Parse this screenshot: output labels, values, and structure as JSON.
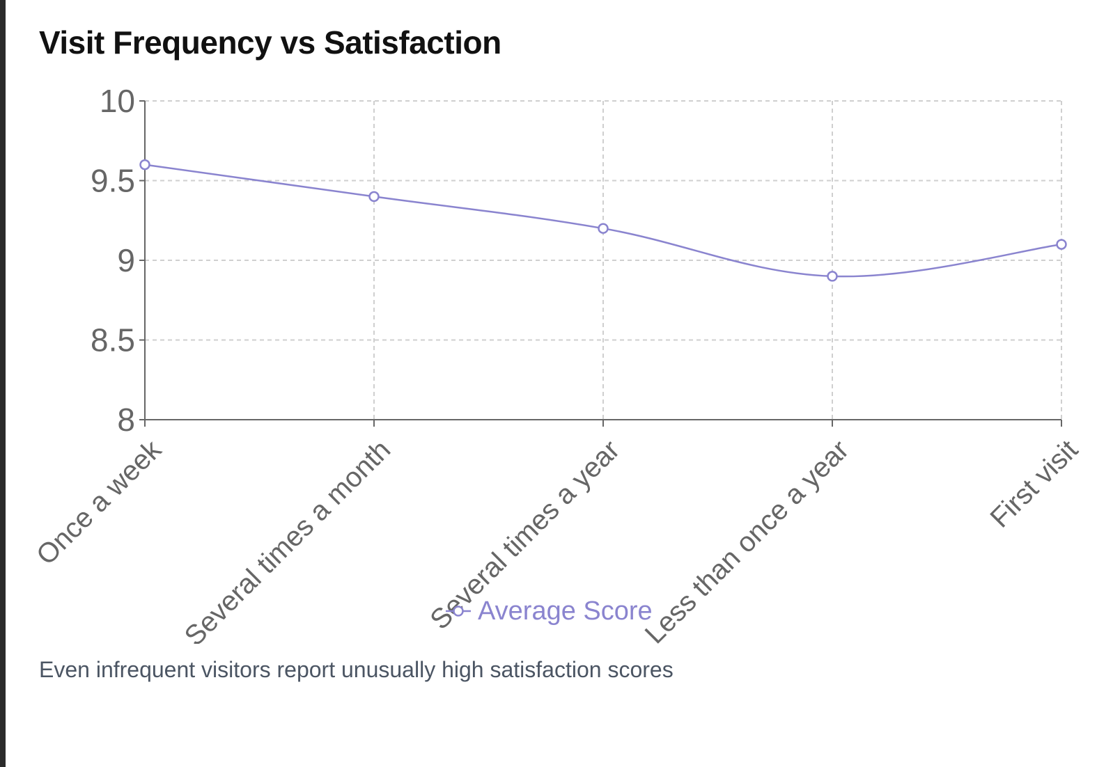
{
  "chart_title": "Visit Frequency vs Satisfaction",
  "caption": "Even infrequent visitors report unusually high satisfaction scores",
  "colors": {
    "series": "#8a84cf",
    "grid": "#cfcfcf",
    "axis": "#666666",
    "tick_text": "#666666"
  },
  "chart_data": {
    "type": "line",
    "title": "Visit Frequency vs Satisfaction",
    "xlabel": "",
    "ylabel": "",
    "categories": [
      "Once a week",
      "Several times a month",
      "Several times a year",
      "Less than once a year",
      "First visit"
    ],
    "series": [
      {
        "name": "Average Score",
        "values": [
          9.6,
          9.4,
          9.2,
          8.9,
          9.1
        ]
      }
    ],
    "ylim": [
      8,
      10
    ],
    "yticks": [
      "8",
      "8.5",
      "9",
      "9.5",
      "10"
    ],
    "grid": true,
    "legend": "bottom",
    "curve": "smooth"
  }
}
